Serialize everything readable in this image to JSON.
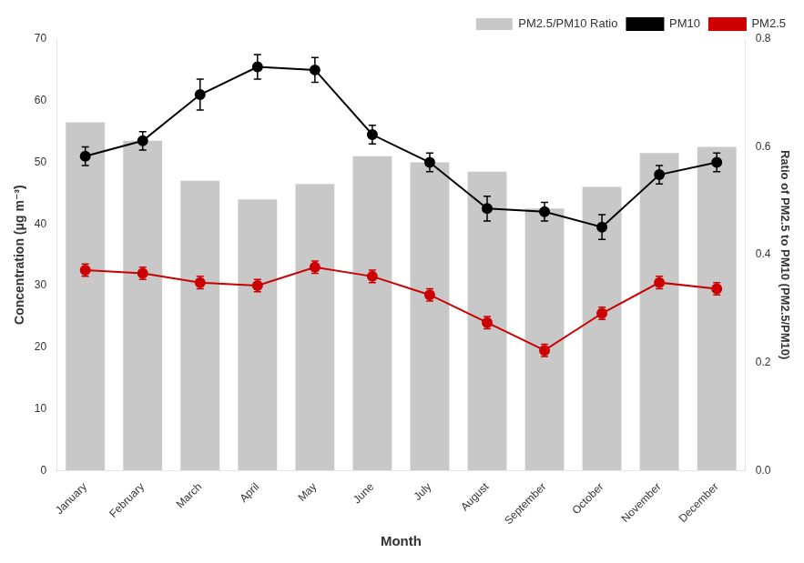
{
  "chart_data": {
    "type": "bar",
    "x_label": "Month",
    "y_label": "Concentration (μg m⁻³)",
    "y2_label": "Ratio of PM2.5 to PM10 (PM2.5/PM10)",
    "categories": [
      "January",
      "February",
      "March",
      "April",
      "May",
      "June",
      "July",
      "August",
      "September",
      "October",
      "November",
      "December"
    ],
    "series": [
      {
        "name": "PM2.5/PM10 Ratio",
        "type": "bar",
        "color": "#c8c8c8",
        "values": [
          56.5,
          53.5,
          47.0,
          44.0,
          46.5,
          51.0,
          50.0,
          48.5,
          42.5,
          46.0,
          51.5,
          52.5
        ]
      },
      {
        "name": "PM10",
        "type": "line",
        "color": "#000000",
        "marker": "circle",
        "values": [
          51.0,
          53.5,
          61.0,
          65.5,
          65.0,
          54.5,
          50.0,
          42.5,
          42.0,
          39.5,
          48.0,
          50.0
        ],
        "errors": [
          1.5,
          1.5,
          2.5,
          2.0,
          2.0,
          1.5,
          1.5,
          2.0,
          1.5,
          2.0,
          1.5,
          1.5
        ]
      },
      {
        "name": "PM2.5",
        "type": "line",
        "color": "#cc0000",
        "marker": "circle",
        "values": [
          32.5,
          32.0,
          30.5,
          30.0,
          33.0,
          31.5,
          28.5,
          24.0,
          19.5,
          25.5,
          30.5,
          29.5
        ],
        "errors": [
          1.0,
          1.0,
          1.0,
          1.0,
          1.0,
          1.0,
          1.0,
          1.0,
          1.0,
          1.0,
          1.0,
          1.0
        ]
      }
    ],
    "ylim": [
      0,
      70
    ],
    "yticks": [
      0,
      10,
      20,
      30,
      40,
      50,
      60,
      70
    ],
    "y2lim": [
      0.0,
      0.8
    ],
    "y2ticks": [
      {
        "value": 0,
        "label": "0.0"
      },
      0.2,
      0.4,
      0.6,
      0.8
    ],
    "grid": false,
    "legend": "upper right"
  }
}
